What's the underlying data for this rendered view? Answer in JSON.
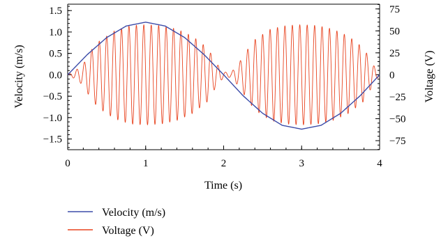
{
  "chart_data": {
    "type": "line",
    "title": "",
    "xlabel": "Time (s)",
    "ylabel": "Velocity (m/s)",
    "y2label": "Voltage (V)",
    "xlim": [
      0,
      4
    ],
    "ylim": [
      -1.75,
      1.65
    ],
    "y2lim": [
      -85.3,
      80.4
    ],
    "x_ticks": [
      0,
      1,
      2,
      3,
      4
    ],
    "y_ticks": [
      -1.5,
      -1.0,
      -0.5,
      0.0,
      0.5,
      1.0,
      1.5
    ],
    "y_tick_labels": [
      "−1.5",
      "−1.0",
      "−0.5",
      "0.0",
      "0.5",
      "1.0",
      "1.5"
    ],
    "y2_ticks": [
      -75,
      -50,
      -25,
      0,
      25,
      50,
      75
    ],
    "y2_tick_labels": [
      "−75",
      "−50",
      "−25",
      "0",
      "25",
      "50",
      "75"
    ],
    "grid": false,
    "legend_position": "bottom-left",
    "series": [
      {
        "name": "Velocity (m/s)",
        "axis": "left",
        "color": "#3b4ba8",
        "x": [
          0,
          0.25,
          0.5,
          0.75,
          1.0,
          1.25,
          1.5,
          1.75,
          2.0,
          2.25,
          2.5,
          2.75,
          3.0,
          3.25,
          3.5,
          3.75,
          4.0
        ],
        "values": [
          0,
          0.47,
          0.87,
          1.14,
          1.23,
          1.14,
          0.87,
          0.47,
          0,
          -0.49,
          -0.9,
          -1.18,
          -1.27,
          -1.18,
          -0.9,
          -0.49,
          0
        ]
      },
      {
        "name": "Voltage (V)",
        "axis": "right",
        "color": "#e8431f",
        "x": [
          0,
          0.1,
          0.2,
          0.3,
          0.4,
          0.6,
          0.8,
          1.0,
          1.2,
          1.4,
          1.6,
          1.8,
          1.9,
          2.0,
          2.1,
          2.2,
          2.3,
          2.4,
          2.6,
          2.8,
          3.0,
          3.2,
          3.4,
          3.6,
          3.8,
          3.9,
          4.0
        ],
        "values": [
          0,
          5,
          12,
          28,
          38,
          50,
          56,
          57,
          56,
          52,
          44,
          30,
          14,
          3,
          3,
          14,
          28,
          40,
          52,
          56,
          57,
          56,
          52,
          44,
          30,
          14,
          0
        ],
        "note_shape": "envelope amplitude of oscillating voltage"
      }
    ]
  }
}
